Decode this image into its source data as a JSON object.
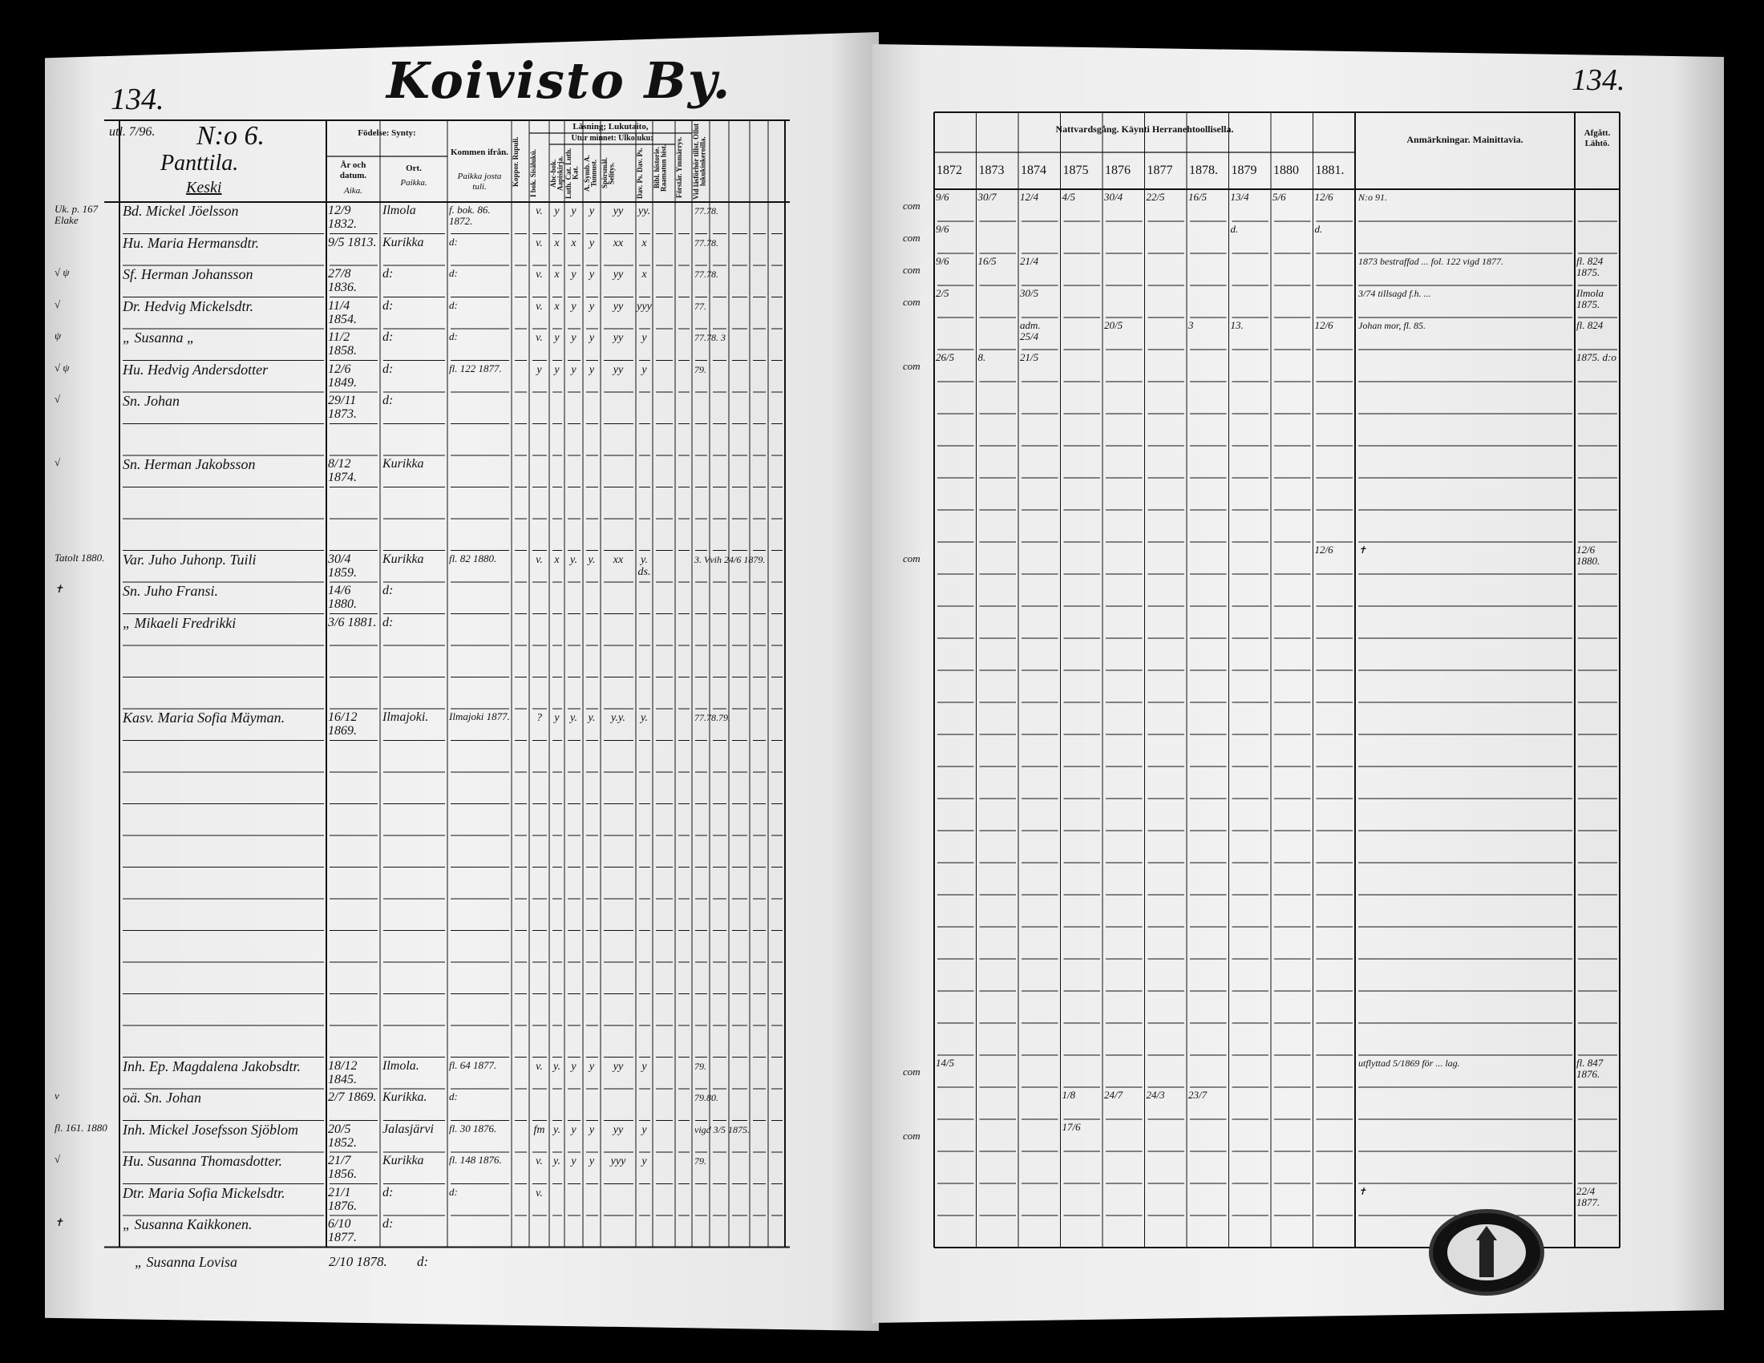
{
  "left_page": {
    "page_number": "134.",
    "title": "Koivisto By.",
    "household": {
      "annotation": "utl. 7/96.",
      "number": "N:o 6.",
      "name": "Panttila.",
      "subname": "Keski"
    },
    "headers": {
      "birth": "Födelse: Synty:",
      "birth_year": "År och datum.",
      "birth_year_fi": "Aika.",
      "birth_place": "Ort.",
      "birth_place_fi": "Paikka.",
      "came_from": "Kommen ifrån.",
      "came_from_fi": "Paikka josta tuli.",
      "smallpox": "Koppor. Rupuli.",
      "reading": "Läsning; Lukutaito,",
      "by_heart": "Utur minnet: Ulkoluku:",
      "book": "I bok. Sisälukú.",
      "abc": "Abc-bok. Aapiskirja.",
      "catechism": "Luth. Cat. Luth. Kat.",
      "symbols": "A. Symb. A. Tunnust.",
      "questions": "Spörsmål. Selitys.",
      "psalms": "Dav. Ps. Dav. Ps.",
      "bible": "Bibl. historie. Raamatun hist.",
      "understands": "Förstår. Ymmärrys.",
      "examinations": "Vid läsförhör tillst. Ollut lukukinkeroilla."
    },
    "rows": [
      {
        "row": 0,
        "margin": "Uk. p. 167 Elake",
        "name": "Bd. Mickel Jöelsson",
        "born": "12/9 1832.",
        "place": "Ilmola",
        "from": "f. bok. 86. 1872.",
        "marks": [
          "v.",
          "y",
          "y",
          "y",
          "yy",
          "yy."
        ],
        "extra": "77.78."
      },
      {
        "row": 1,
        "margin": "",
        "name": "Hu. Maria Hermansdtr.",
        "born": "9/5 1813.",
        "place": "Kurikka",
        "from": "d:",
        "marks": [
          "v.",
          "x",
          "x",
          "y",
          "xx",
          "x"
        ],
        "extra": "77.78."
      },
      {
        "row": 2,
        "margin": "√ ψ",
        "name": "Sf. Herman Johansson",
        "born": "27/8 1836.",
        "place": "d:",
        "from": "d:",
        "marks": [
          "v.",
          "x",
          "y",
          "y",
          "yy",
          "x"
        ],
        "extra": "77.78."
      },
      {
        "row": 3,
        "margin": "√",
        "name": "Dr. Hedvig Mickelsdtr.",
        "born": "11/4 1854.",
        "place": "d:",
        "from": "d:",
        "marks": [
          "v.",
          "x",
          "y",
          "y",
          "yy",
          "yyy"
        ],
        "extra": "77."
      },
      {
        "row": 4,
        "margin": "ψ",
        "name": "„ Susanna „",
        "born": "11/2 1858.",
        "place": "d:",
        "from": "d:",
        "marks": [
          "v.",
          "y",
          "y",
          "y",
          "yy",
          "y"
        ],
        "extra": "77.78. 3"
      },
      {
        "row": 5,
        "margin": "√ ψ",
        "name": "Hu. Hedvig Andersdotter",
        "born": "12/6 1849.",
        "place": "d:",
        "from": "fl. 122 1877.",
        "marks": [
          "y",
          "y",
          "y",
          "y",
          "yy",
          "y"
        ],
        "extra": "79."
      },
      {
        "row": 6,
        "margin": "√",
        "name": "Sn. Johan",
        "born": "29/11 1873.",
        "place": "d:",
        "from": "",
        "marks": [],
        "extra": ""
      },
      {
        "row": 8,
        "margin": "√",
        "name": "Sn. Herman Jakobsson",
        "born": "8/12 1874.",
        "place": "Kurikka",
        "from": "",
        "marks": [],
        "extra": ""
      },
      {
        "row": 11,
        "margin": "Tatolt 1880.",
        "name": "Var. Juho Juhonp. Tuili",
        "born": "30/4 1859.",
        "place": "Kurikka",
        "from": "fl. 82 1880.",
        "marks": [
          "v.",
          "x",
          "y.",
          "y.",
          "xx",
          "y. ds."
        ],
        "extra": "3. Vvih 24/6 1879."
      },
      {
        "row": 12,
        "margin": "✝",
        "name": "Sn. Juho Fransi.",
        "born": "14/6 1880.",
        "place": "d:",
        "from": "",
        "marks": [],
        "extra": ""
      },
      {
        "row": 13,
        "margin": "",
        "name": "„ Mikaeli Fredrikki",
        "born": "3/6 1881.",
        "place": "d:",
        "from": "",
        "marks": [],
        "extra": ""
      },
      {
        "row": 16,
        "margin": "",
        "name": "Kasv. Maria Sofia Mäyman.",
        "born": "16/12 1869.",
        "place": "Ilmajoki.",
        "from": "Ilmajoki 1877.",
        "marks": [
          "?",
          "y",
          "y.",
          "y.",
          "y.y.",
          "y."
        ],
        "extra": "77.78.79."
      },
      {
        "row": 27,
        "margin": "",
        "name": "Inh. Ep. Magdalena Jakobsdtr.",
        "born": "18/12 1845.",
        "place": "Ilmola.",
        "from": "fl. 64 1877.",
        "marks": [
          "v.",
          "y.",
          "y",
          "y",
          "yy",
          "y"
        ],
        "extra": "79."
      },
      {
        "row": 28,
        "margin": "v",
        "name": "oä. Sn. Johan",
        "born": "2/7 1869.",
        "place": "Kurikka.",
        "from": "d:",
        "marks": [],
        "extra": "79.80."
      },
      {
        "row": 29,
        "margin": "fl. 161. 1880",
        "name": "Inh. Mickel Josefsson Sjöblom",
        "born": "20/5 1852.",
        "place": "Jalasjärvi",
        "from": "fl. 30 1876.",
        "marks": [
          "fm",
          "y.",
          "y",
          "y",
          "yy",
          "y"
        ],
        "extra": "vigd 3/5 1875."
      },
      {
        "row": 30,
        "margin": "√",
        "name": "Hu. Susanna Thomasdotter.",
        "born": "21/7 1856.",
        "place": "Kurikka",
        "from": "fl. 148 1876.",
        "marks": [
          "v.",
          "y.",
          "y",
          "y",
          "yyy",
          "y"
        ],
        "extra": "79."
      },
      {
        "row": 31,
        "margin": "",
        "name": "Dtr. Maria Sofia Mickelsdtr.",
        "born": "21/1 1876.",
        "place": "d:",
        "from": "d:",
        "marks": [
          "v."
        ],
        "extra": ""
      },
      {
        "row": 32,
        "margin": "✝",
        "name": "„ Susanna Kaikkonen.",
        "born": "6/10 1877.",
        "place": "d:",
        "from": "",
        "marks": [],
        "extra": ""
      }
    ],
    "below_table": {
      "name": "„ Susanna Lovisa",
      "born": "2/10 1878.",
      "place": "d:"
    }
  },
  "right_page": {
    "page_number": "134.",
    "headers": {
      "communion": "Nattvardsgång. Käynti Herranehtoollisella.",
      "years": [
        "1872",
        "1873",
        "1874",
        "1875",
        "1876",
        "1877",
        "1878.",
        "1879",
        "1880",
        "1881."
      ],
      "remarks": "Anmärkningar. Mainittavia.",
      "departed": "Afgått. Lähtö."
    },
    "rows": [
      {
        "row": 0,
        "prefix": "com",
        "cells": [
          "9/6",
          "30/7",
          "12/4",
          "4/5",
          "30/4",
          "22/5",
          "16/5",
          "13/4",
          "5/6",
          "12/6"
        ],
        "remark": "N:o 91.",
        "departed": ""
      },
      {
        "row": 1,
        "prefix": "com",
        "cells": [
          "9/6",
          "",
          "",
          "",
          "",
          "",
          "",
          "d.",
          "",
          "d."
        ],
        "remark": "",
        "departed": ""
      },
      {
        "row": 2,
        "prefix": "com",
        "cells": [
          "9/6",
          "16/5",
          "21/4",
          "",
          "",
          "",
          "",
          "",
          "",
          ""
        ],
        "remark": "1873 bestraffad ... fol. 122 vigd 1877.",
        "departed": "fl. 824 1875."
      },
      {
        "row": 3,
        "prefix": "com",
        "cells": [
          "2/5",
          "",
          "30/5",
          "",
          "",
          "",
          "",
          "",
          "",
          ""
        ],
        "remark": "3/74 tillsagd f.h. ...",
        "departed": "Ilmola 1875."
      },
      {
        "row": 4,
        "prefix": "",
        "cells": [
          "",
          "",
          "adm. 25/4",
          "",
          "20/5",
          "",
          "3",
          "13.",
          "",
          "12/6"
        ],
        "remark": "Johan mor, fl. 85.",
        "departed": "fl. 824"
      },
      {
        "row": 5,
        "prefix": "com",
        "cells": [
          "26/5",
          "8.",
          "21/5",
          "",
          "",
          "",
          "",
          "",
          "",
          ""
        ],
        "remark": "",
        "departed": "1875. d:o"
      },
      {
        "row": 11,
        "prefix": "com",
        "cells": [
          "",
          "",
          "",
          "",
          "",
          "",
          "",
          "",
          "",
          "12/6"
        ],
        "remark": "✝",
        "departed": "12/6 1880."
      },
      {
        "row": 27,
        "prefix": "com",
        "cells": [
          "14/5",
          "",
          "",
          "",
          "",
          "",
          "",
          "",
          "",
          ""
        ],
        "remark": "utflyttad 5/1869 för ... lag.",
        "departed": "fl. 847 1876."
      },
      {
        "row": 28,
        "prefix": "",
        "cells": [
          "",
          "",
          "",
          "1/8",
          "24/7",
          "24/3",
          "23/7",
          "",
          "",
          ""
        ],
        "remark": "",
        "departed": ""
      },
      {
        "row": 29,
        "prefix": "com",
        "cells": [
          "",
          "",
          "",
          "17/6",
          "",
          "",
          "",
          "",
          "",
          ""
        ],
        "remark": "",
        "departed": ""
      },
      {
        "row": 31,
        "prefix": "",
        "cells": [
          "",
          "",
          "",
          "",
          "",
          "",
          "",
          "",
          "",
          ""
        ],
        "remark": "✝",
        "departed": "22/4 1877."
      }
    ]
  },
  "archive_seal": {
    "type": "stamp",
    "icon": "church-seal"
  }
}
